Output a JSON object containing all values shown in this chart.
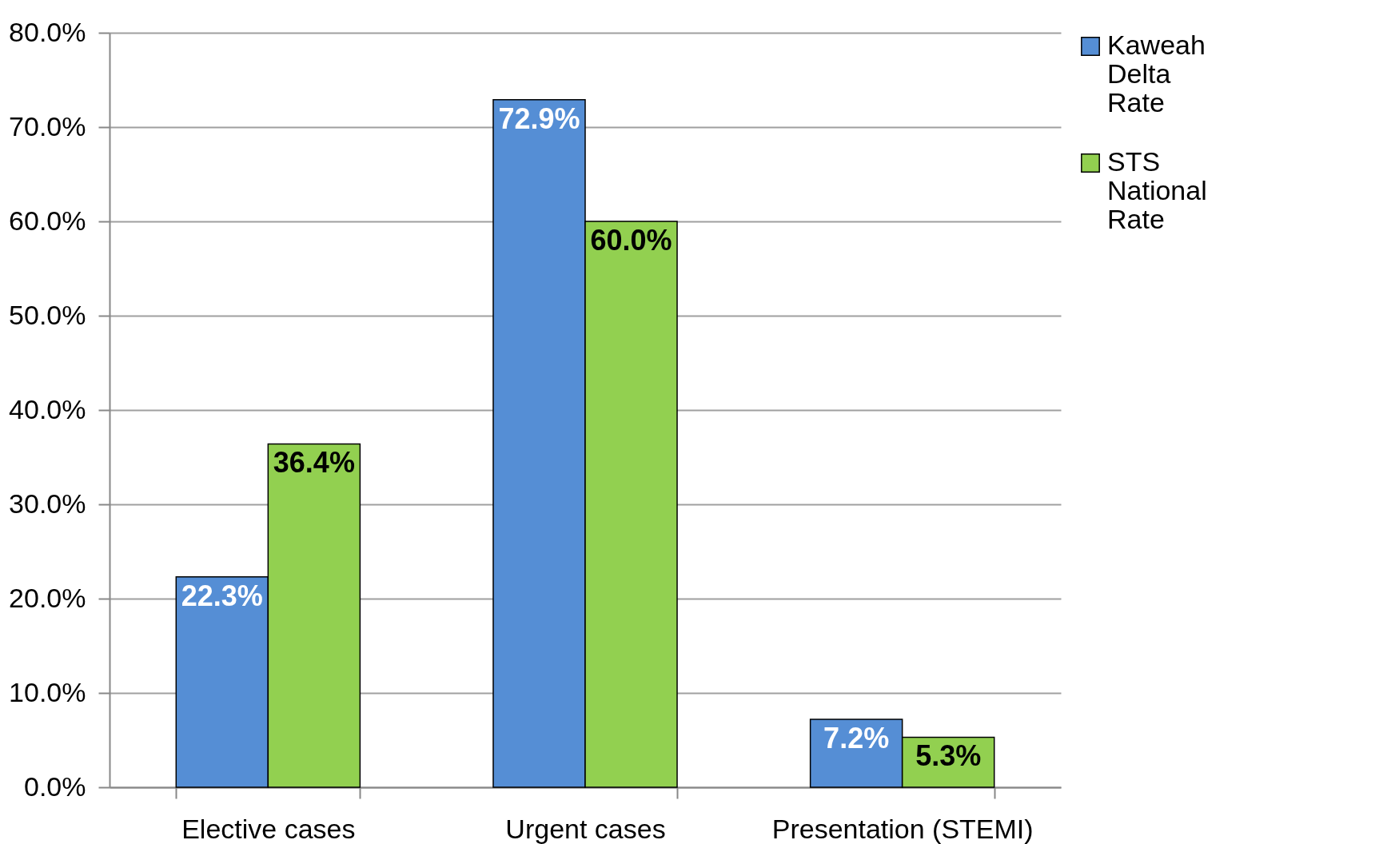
{
  "chart_data": {
    "type": "bar",
    "categories": [
      "Elective cases",
      "Urgent cases",
      "Presentation (STEMI)"
    ],
    "series": [
      {
        "name": "Kaweah Delta Rate",
        "color": "#558ed5",
        "values": [
          22.3,
          72.9,
          7.2
        ],
        "value_labels": [
          "22.3%",
          "72.9%",
          "7.2%"
        ]
      },
      {
        "name": "STS National Rate",
        "color": "#92d050",
        "values": [
          36.4,
          60.0,
          5.3
        ],
        "value_labels": [
          "36.4%",
          "60.0%",
          "5.3%"
        ]
      }
    ],
    "ylim": [
      0,
      80
    ],
    "yticks": [
      {
        "value": 0,
        "label": "0.0%"
      },
      {
        "value": 10,
        "label": "10.0%"
      },
      {
        "value": 20,
        "label": "20.0%"
      },
      {
        "value": 30,
        "label": "30.0%"
      },
      {
        "value": 40,
        "label": "40.0%"
      },
      {
        "value": 50,
        "label": "50.0%"
      },
      {
        "value": 60,
        "label": "60.0%"
      },
      {
        "value": 70,
        "label": "70.0%"
      },
      {
        "value": 80,
        "label": "80.0%"
      }
    ],
    "grid": "y",
    "legend": "right"
  }
}
